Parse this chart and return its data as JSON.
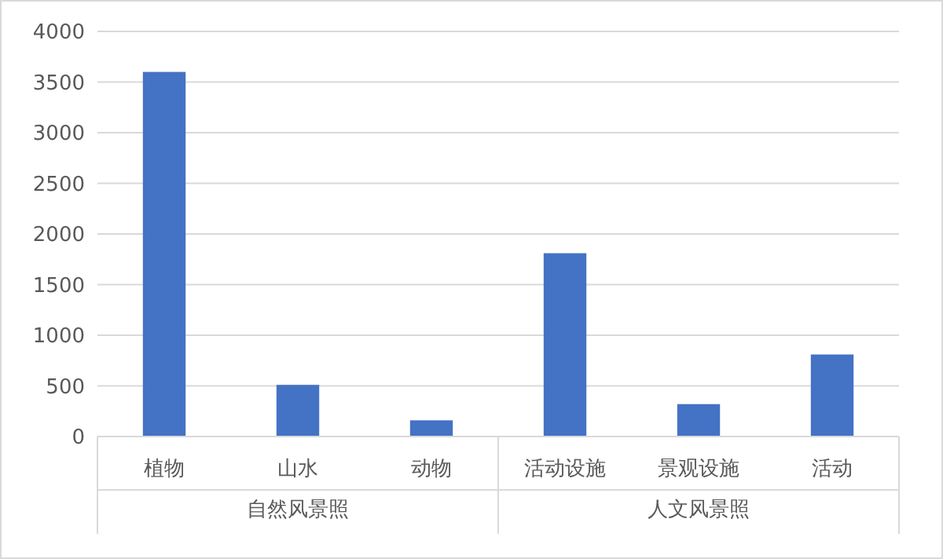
{
  "chart_data": {
    "type": "bar",
    "categories": [
      "植物",
      "山水",
      "动物",
      "活动设施",
      "景观设施",
      "活动"
    ],
    "values": [
      3600,
      510,
      160,
      1810,
      320,
      810
    ],
    "color": "#4472c4",
    "ylim": [
      0,
      4000
    ],
    "yticks": [
      0,
      500,
      1000,
      1500,
      2000,
      2500,
      3000,
      3500,
      4000
    ],
    "grid": "y",
    "annotations": [
      "自然风景照",
      "人文风景照"
    ]
  }
}
